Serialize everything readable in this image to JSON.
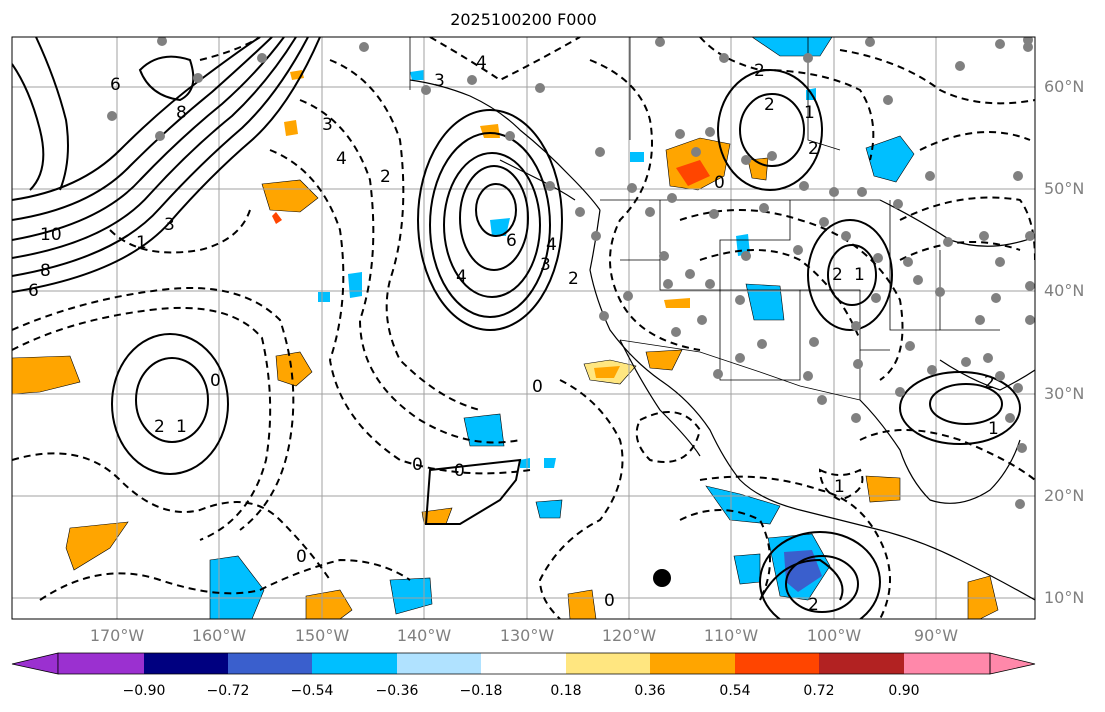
{
  "title": "2025100200 F000",
  "lat_labels": [
    "60°N",
    "50°N",
    "40°N",
    "30°N",
    "20°N",
    "10°N"
  ],
  "lon_labels": [
    "170°W",
    "160°W",
    "150°W",
    "140°W",
    "130°W",
    "120°W",
    "110°W",
    "100°W",
    "90°W"
  ],
  "colorbar": {
    "tick_labels": [
      "−0.90",
      "−0.72",
      "−0.54",
      "−0.36",
      "−0.18",
      "0.18",
      "0.36",
      "0.54",
      "0.72",
      "0.90"
    ],
    "colors": [
      "#9b30d0",
      "#000080",
      "#3a5fcd",
      "#00bfff",
      "#b0e2ff",
      "#ffffff",
      "#ffe680",
      "#ffa500",
      "#ff4500",
      "#b22222",
      "#ff88aa",
      "#ff88aa"
    ]
  },
  "contour_labels": [
    "10",
    "8",
    "6",
    "8",
    "6",
    "4",
    "4",
    "3",
    "2",
    "0",
    "2",
    "1",
    "0",
    "0",
    "0",
    "0",
    "2",
    "2",
    "1",
    "0",
    "2",
    "1",
    "2",
    "2",
    "0",
    "2",
    "1",
    "1",
    "1",
    "2",
    "6",
    "4",
    "3",
    "3",
    "3",
    "4"
  ],
  "colors": {
    "contour": "#000000",
    "grid": "#a0a0a0",
    "station": "#808080",
    "coast": "#000000",
    "label": "#808080"
  },
  "marker": "storm-center-dot"
}
